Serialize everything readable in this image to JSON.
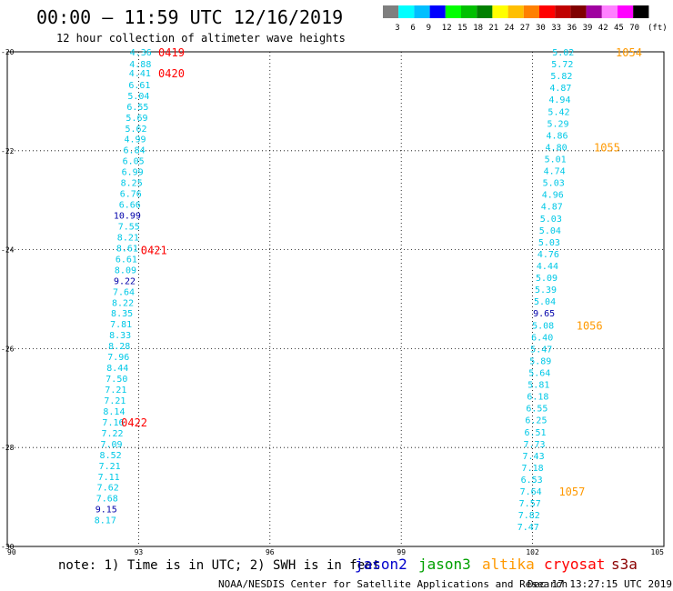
{
  "header": {
    "title": "00:00 – 11:59 UTC 12/16/2019",
    "subtitle": "12 hour collection of altimeter wave heights"
  },
  "colorbar": {
    "colors": [
      "#7f7f7f",
      "#00ffff",
      "#00bfff",
      "#0000ff",
      "#00ff00",
      "#00c000",
      "#008000",
      "#ffff00",
      "#ffbf00",
      "#ff8000",
      "#ff0000",
      "#c00000",
      "#800000",
      "#a000a0",
      "#ff80ff",
      "#ff00ff",
      "#000000"
    ],
    "labels": [
      "3",
      "6",
      "9",
      "12",
      "15",
      "18",
      "21",
      "24",
      "27",
      "30",
      "33",
      "36",
      "39",
      "42",
      "45",
      "70"
    ],
    "unit": "(ft)"
  },
  "footer": {
    "note": "note: 1) Time is in UTC; 2) SWH is in feet",
    "credit": "NOAA/NESDIS Center for Satellite Applications and Research",
    "timestamp": "Dec 17 13:27:15 UTC 2019"
  },
  "legend": [
    {
      "name": "jason2",
      "color": "#0000cc"
    },
    {
      "name": "jason3",
      "color": "#00a000"
    },
    {
      "name": "altika",
      "color": "#ff9900"
    },
    {
      "name": "cryosat",
      "color": "#ff0000"
    },
    {
      "name": "s3a",
      "color": "#8b0000"
    }
  ],
  "chart_data": {
    "type": "scatter",
    "title": "00:00 – 11:59 UTC 12/16/2019",
    "subtitle": "12 hour collection of altimeter wave heights",
    "xlim": [
      90,
      105
    ],
    "ylim": [
      -30,
      -20
    ],
    "x_ticks": [
      "90",
      "93",
      "96",
      "99",
      "102",
      "105"
    ],
    "y_ticks": [
      "-20",
      "-22",
      "-24",
      "-26",
      "-28",
      "-30"
    ],
    "grid": "dotted",
    "colors": {
      "cyan": "#00c8e6",
      "navy": "#0000aa",
      "red": "#ff0000",
      "orange": "#ff9900"
    },
    "series": [
      {
        "name": "cryosat",
        "points": [
          {
            "x": 93.05,
            "y": -20.0,
            "v": "4.36",
            "c": "cyan"
          },
          {
            "x": 93.04,
            "y": -20.24,
            "v": "4.88",
            "c": "cyan"
          },
          {
            "x": 93.03,
            "y": -20.42,
            "v": "4.41",
            "c": "cyan"
          },
          {
            "x": 93.02,
            "y": -20.66,
            "v": "6.61",
            "c": "cyan"
          },
          {
            "x": 93.0,
            "y": -20.88,
            "v": "5.04",
            "c": "cyan"
          },
          {
            "x": 92.98,
            "y": -21.1,
            "v": "6.55",
            "c": "cyan"
          },
          {
            "x": 92.96,
            "y": -21.32,
            "v": "5.69",
            "c": "cyan"
          },
          {
            "x": 92.94,
            "y": -21.54,
            "v": "5.62",
            "c": "cyan"
          },
          {
            "x": 92.92,
            "y": -21.76,
            "v": "4.99",
            "c": "cyan"
          },
          {
            "x": 92.9,
            "y": -21.98,
            "v": "6.84",
            "c": "cyan"
          },
          {
            "x": 92.88,
            "y": -22.2,
            "v": "6.05",
            "c": "cyan"
          },
          {
            "x": 92.86,
            "y": -22.42,
            "v": "6.99",
            "c": "cyan"
          },
          {
            "x": 92.84,
            "y": -22.64,
            "v": "8.25",
            "c": "cyan"
          },
          {
            "x": 92.82,
            "y": -22.86,
            "v": "6.76",
            "c": "cyan"
          },
          {
            "x": 92.8,
            "y": -23.08,
            "v": "6.66",
            "c": "cyan"
          },
          {
            "x": 92.74,
            "y": -23.3,
            "v": "10.99",
            "c": "navy"
          },
          {
            "x": 92.78,
            "y": -23.52,
            "v": "7.55",
            "c": "cyan"
          },
          {
            "x": 92.76,
            "y": -23.74,
            "v": "8.21",
            "c": "cyan"
          },
          {
            "x": 92.74,
            "y": -23.96,
            "v": "8.61",
            "c": "cyan"
          },
          {
            "x": 92.72,
            "y": -24.18,
            "v": "6.61",
            "c": "cyan"
          },
          {
            "x": 92.7,
            "y": -24.4,
            "v": "8.09",
            "c": "cyan"
          },
          {
            "x": 92.68,
            "y": -24.62,
            "v": "9.22",
            "c": "navy"
          },
          {
            "x": 92.66,
            "y": -24.84,
            "v": "7.64",
            "c": "cyan"
          },
          {
            "x": 92.64,
            "y": -25.06,
            "v": "8.22",
            "c": "cyan"
          },
          {
            "x": 92.62,
            "y": -25.28,
            "v": "8.35",
            "c": "cyan"
          },
          {
            "x": 92.6,
            "y": -25.5,
            "v": "7.81",
            "c": "cyan"
          },
          {
            "x": 92.58,
            "y": -25.72,
            "v": "8.33",
            "c": "cyan"
          },
          {
            "x": 92.56,
            "y": -25.94,
            "v": "8.28",
            "c": "cyan"
          },
          {
            "x": 92.54,
            "y": -26.16,
            "v": "7.96",
            "c": "cyan"
          },
          {
            "x": 92.52,
            "y": -26.38,
            "v": "8.44",
            "c": "cyan"
          },
          {
            "x": 92.5,
            "y": -26.6,
            "v": "7.50",
            "c": "cyan"
          },
          {
            "x": 92.48,
            "y": -26.82,
            "v": "7.21",
            "c": "cyan"
          },
          {
            "x": 92.46,
            "y": -27.04,
            "v": "7.21",
            "c": "cyan"
          },
          {
            "x": 92.44,
            "y": -27.26,
            "v": "8.14",
            "c": "cyan"
          },
          {
            "x": 92.42,
            "y": -27.48,
            "v": "7.16",
            "c": "cyan"
          },
          {
            "x": 92.4,
            "y": -27.7,
            "v": "7.22",
            "c": "cyan"
          },
          {
            "x": 92.38,
            "y": -27.92,
            "v": "7.09",
            "c": "cyan"
          },
          {
            "x": 92.36,
            "y": -28.14,
            "v": "8.52",
            "c": "cyan"
          },
          {
            "x": 92.34,
            "y": -28.36,
            "v": "7.21",
            "c": "cyan"
          },
          {
            "x": 92.32,
            "y": -28.58,
            "v": "7.11",
            "c": "cyan"
          },
          {
            "x": 92.3,
            "y": -28.8,
            "v": "7.62",
            "c": "cyan"
          },
          {
            "x": 92.28,
            "y": -29.02,
            "v": "7.68",
            "c": "cyan"
          },
          {
            "x": 92.26,
            "y": -29.24,
            "v": "9.15",
            "c": "navy"
          },
          {
            "x": 92.24,
            "y": -29.46,
            "v": "8.17",
            "c": "cyan"
          }
        ],
        "time_labels": [
          {
            "x": 93.75,
            "y": -20.0,
            "text": "0419",
            "c": "red"
          },
          {
            "x": 93.75,
            "y": -20.42,
            "text": "0420",
            "c": "red"
          },
          {
            "x": 93.35,
            "y": -24.0,
            "text": "0421",
            "c": "red"
          },
          {
            "x": 92.9,
            "y": -27.48,
            "text": "0422",
            "c": "red"
          }
        ]
      },
      {
        "name": "altika",
        "points": [
          {
            "x": 102.7,
            "y": -20.0,
            "v": "5.02",
            "c": "cyan"
          },
          {
            "x": 102.68,
            "y": -20.24,
            "v": "5.72",
            "c": "cyan"
          },
          {
            "x": 102.66,
            "y": -20.48,
            "v": "5.82",
            "c": "cyan"
          },
          {
            "x": 102.64,
            "y": -20.72,
            "v": "4.87",
            "c": "cyan"
          },
          {
            "x": 102.62,
            "y": -20.96,
            "v": "4.94",
            "c": "cyan"
          },
          {
            "x": 102.6,
            "y": -21.2,
            "v": "5.42",
            "c": "cyan"
          },
          {
            "x": 102.58,
            "y": -21.44,
            "v": "5.29",
            "c": "cyan"
          },
          {
            "x": 102.56,
            "y": -21.68,
            "v": "4.86",
            "c": "cyan"
          },
          {
            "x": 102.54,
            "y": -21.92,
            "v": "4.80",
            "c": "cyan"
          },
          {
            "x": 102.52,
            "y": -22.16,
            "v": "5.01",
            "c": "cyan"
          },
          {
            "x": 102.5,
            "y": -22.4,
            "v": "4.74",
            "c": "cyan"
          },
          {
            "x": 102.48,
            "y": -22.64,
            "v": "5.03",
            "c": "cyan"
          },
          {
            "x": 102.46,
            "y": -22.88,
            "v": "4.96",
            "c": "cyan"
          },
          {
            "x": 102.44,
            "y": -23.12,
            "v": "4.87",
            "c": "cyan"
          },
          {
            "x": 102.42,
            "y": -23.36,
            "v": "5.03",
            "c": "cyan"
          },
          {
            "x": 102.4,
            "y": -23.6,
            "v": "5.04",
            "c": "cyan"
          },
          {
            "x": 102.38,
            "y": -23.84,
            "v": "5.03",
            "c": "cyan"
          },
          {
            "x": 102.36,
            "y": -24.08,
            "v": "4.76",
            "c": "cyan"
          },
          {
            "x": 102.34,
            "y": -24.32,
            "v": "4.44",
            "c": "cyan"
          },
          {
            "x": 102.32,
            "y": -24.56,
            "v": "5.09",
            "c": "cyan"
          },
          {
            "x": 102.3,
            "y": -24.8,
            "v": "5.39",
            "c": "cyan"
          },
          {
            "x": 102.28,
            "y": -25.04,
            "v": "5.04",
            "c": "cyan"
          },
          {
            "x": 102.26,
            "y": -25.28,
            "v": "9.65",
            "c": "navy"
          },
          {
            "x": 102.24,
            "y": -25.52,
            "v": "5.08",
            "c": "cyan"
          },
          {
            "x": 102.22,
            "y": -25.76,
            "v": "6.40",
            "c": "cyan"
          },
          {
            "x": 102.2,
            "y": -26.0,
            "v": "5.47",
            "c": "cyan"
          },
          {
            "x": 102.18,
            "y": -26.24,
            "v": "5.89",
            "c": "cyan"
          },
          {
            "x": 102.16,
            "y": -26.48,
            "v": "5.64",
            "c": "cyan"
          },
          {
            "x": 102.14,
            "y": -26.72,
            "v": "5.81",
            "c": "cyan"
          },
          {
            "x": 102.12,
            "y": -26.96,
            "v": "6.18",
            "c": "cyan"
          },
          {
            "x": 102.1,
            "y": -27.2,
            "v": "6.55",
            "c": "cyan"
          },
          {
            "x": 102.08,
            "y": -27.44,
            "v": "6.25",
            "c": "cyan"
          },
          {
            "x": 102.06,
            "y": -27.68,
            "v": "6.51",
            "c": "cyan"
          },
          {
            "x": 102.04,
            "y": -27.92,
            "v": "7.73",
            "c": "cyan"
          },
          {
            "x": 102.02,
            "y": -28.16,
            "v": "7.43",
            "c": "cyan"
          },
          {
            "x": 102.0,
            "y": -28.4,
            "v": "7.18",
            "c": "cyan"
          },
          {
            "x": 101.98,
            "y": -28.64,
            "v": "6.53",
            "c": "cyan"
          },
          {
            "x": 101.96,
            "y": -28.88,
            "v": "7.64",
            "c": "cyan"
          },
          {
            "x": 101.94,
            "y": -29.12,
            "v": "7.57",
            "c": "cyan"
          },
          {
            "x": 101.92,
            "y": -29.36,
            "v": "7.82",
            "c": "cyan"
          },
          {
            "x": 101.9,
            "y": -29.6,
            "v": "7.47",
            "c": "cyan"
          }
        ],
        "time_labels": [
          {
            "x": 104.2,
            "y": -20.0,
            "text": "1054",
            "c": "orange"
          },
          {
            "x": 103.7,
            "y": -21.92,
            "text": "1055",
            "c": "orange"
          },
          {
            "x": 103.3,
            "y": -25.52,
            "text": "1056",
            "c": "orange"
          },
          {
            "x": 102.9,
            "y": -28.88,
            "text": "1057",
            "c": "orange"
          }
        ]
      }
    ]
  }
}
